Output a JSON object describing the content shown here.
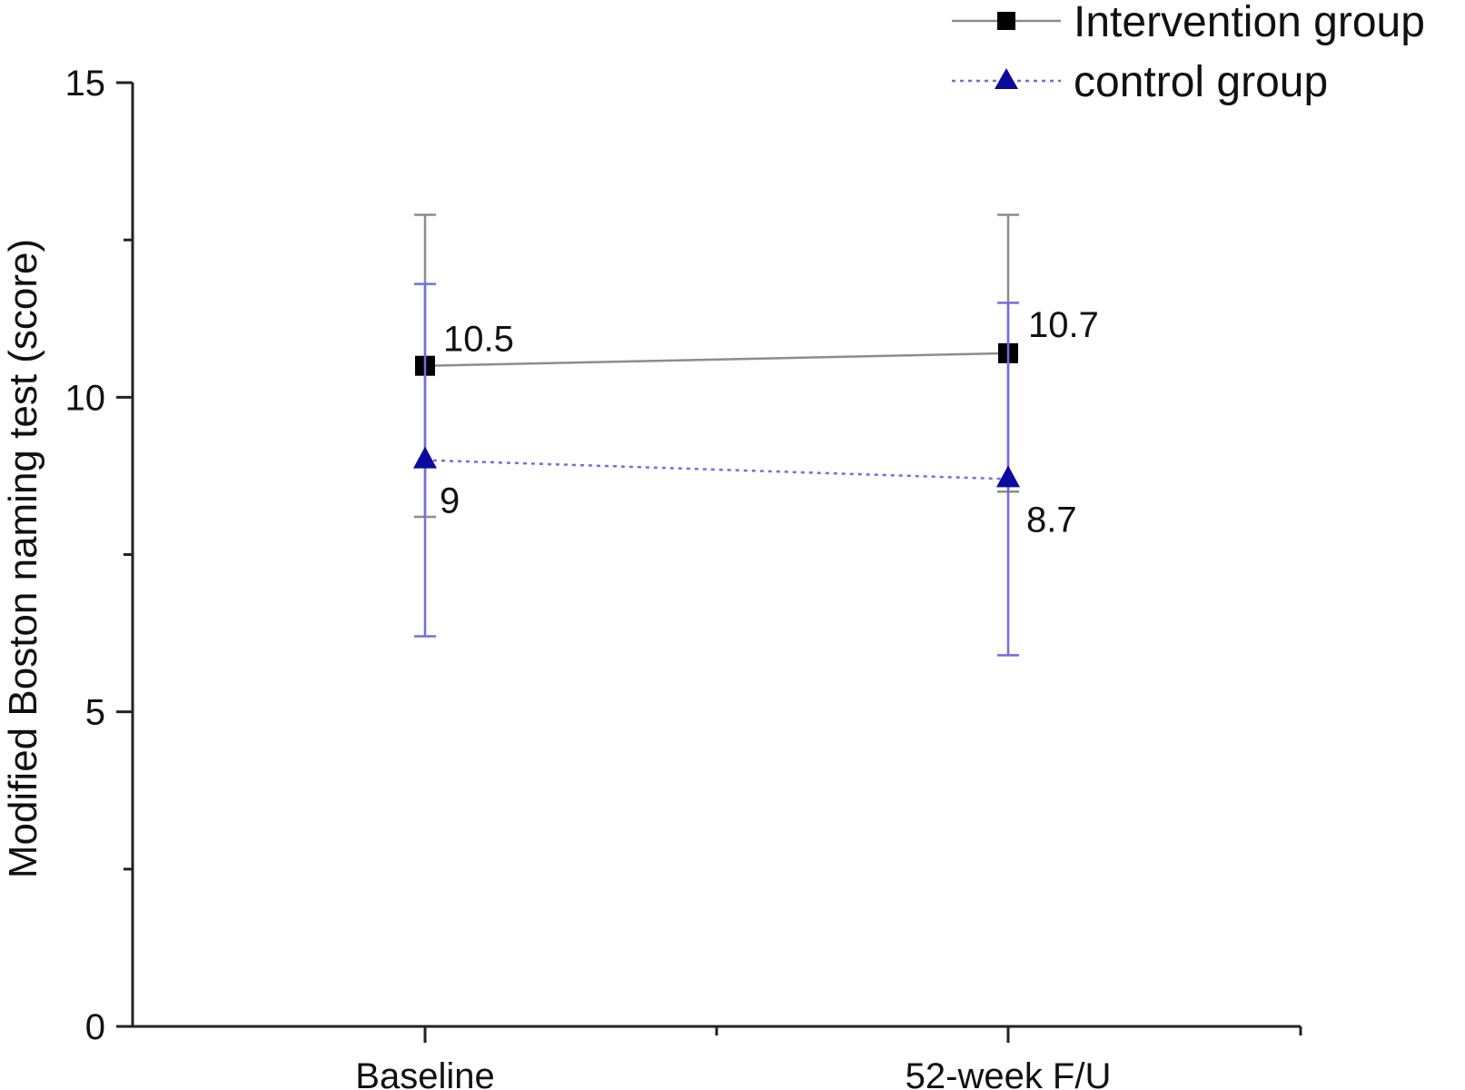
{
  "chart_data": {
    "type": "line",
    "title": "",
    "xlabel": "",
    "ylabel": "Modified Boston naming test (score)",
    "categories": [
      "Baseline",
      "52-week F/U"
    ],
    "ylim": [
      0,
      15
    ],
    "yticks": [
      0,
      5,
      10,
      15
    ],
    "yticks_labels": [
      "0",
      "5",
      "10",
      "15"
    ],
    "grid": false,
    "legend_position": "top-right",
    "series": [
      {
        "name": "Intervention group",
        "values": [
          10.5,
          10.7
        ],
        "error_low": [
          8.1,
          8.5
        ],
        "error_high": [
          12.9,
          12.9
        ],
        "data_labels": [
          "10.5",
          "10.7"
        ],
        "marker": "square",
        "line_style": "solid",
        "color": "#000000",
        "line_color": "#8c8c8c"
      },
      {
        "name": "control group",
        "values": [
          9.0,
          8.7
        ],
        "error_low": [
          6.2,
          5.9
        ],
        "error_high": [
          11.8,
          11.5
        ],
        "data_labels": [
          "9",
          "8.7"
        ],
        "marker": "triangle",
        "line_style": "dotted",
        "color": "#0a0a9e",
        "line_color": "#6f6fe0"
      }
    ]
  }
}
